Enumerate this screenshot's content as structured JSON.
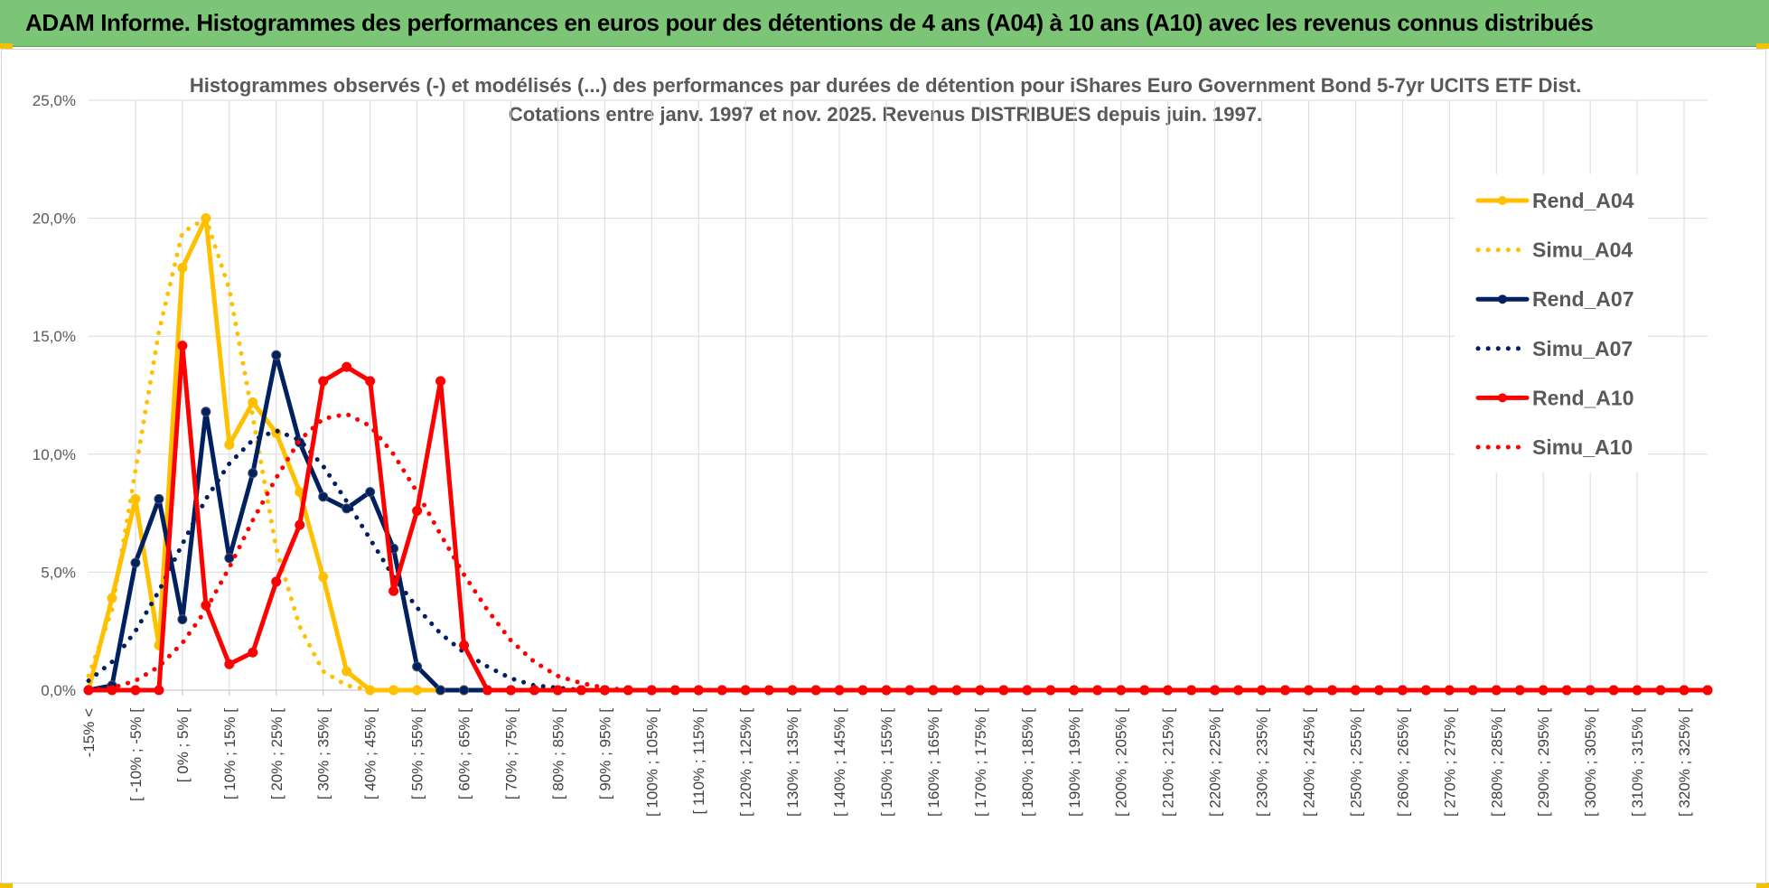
{
  "header": {
    "title": "ADAM Informe. Histogrammes des performances en euros pour des détentions de 4 ans (A04) à 10 ans (A10) avec les revenus connus distribués"
  },
  "chart_data": {
    "type": "line",
    "title_lines": [
      "Histogrammes observés (-) et modélisés (...) des performances par durées de détention pour iShares Euro Government Bond 5-7yr UCITS ETF Dist.",
      "Cotations entre janv. 1997 et nov. 2025. Revenus DISTRIBUES depuis juin. 1997."
    ],
    "xlabel": "",
    "ylabel": "",
    "ylim": [
      0,
      25
    ],
    "y_ticks": [
      "0,0%",
      "5,0%",
      "10,0%",
      "15,0%",
      "20,0%",
      "25,0%"
    ],
    "grid": true,
    "legend_position": "right",
    "x_labels": [
      "-15% <",
      "[ -10% ; -5% [",
      "[ 0% ; 5% [",
      "[ 10% ; 15% [",
      "[ 20% ; 25% [",
      "[ 30% ; 35% [",
      "[ 40% ; 45% [",
      "[ 50% ; 55% [",
      "[ 60% ; 65% [",
      "[ 70% ; 75% [",
      "[ 80% ; 85% [",
      "[ 90% ; 95% [",
      "[ 100% ; 105% [",
      "[ 110% ; 115% [",
      "[ 120% ; 125% [",
      "[ 130% ; 135% [",
      "[ 140% ; 145% [",
      "[ 150% ; 155% [",
      "[ 160% ; 165% [",
      "[ 170% ; 175% [",
      "[ 180% ; 185% [",
      "[ 190% ; 195% [",
      "[ 200% ; 205% [",
      "[ 210% ; 215% [",
      "[ 220% ; 225% [",
      "[ 230% ; 235% [",
      "[ 240% ; 245% [",
      "[ 250% ; 255% [",
      "[ 260% ; 265% [",
      "[ 270% ; 275% [",
      "[ 280% ; 285% [",
      "[ 290% ; 295% [",
      "[ 300% ; 305% [",
      "[ 310% ; 315% [",
      "[ 320% ; 325% ["
    ],
    "series": [
      {
        "name": "Rend_A04",
        "color": "#FFC000",
        "style": "solid",
        "markers": true,
        "values": [
          0.0,
          3.9,
          8.1,
          1.9,
          17.9,
          20.0,
          10.4,
          12.2,
          10.9,
          8.4,
          4.8,
          0.8,
          0.0,
          0.0,
          0.0
        ]
      },
      {
        "name": "Simu_A04",
        "color": "#FFC000",
        "style": "dotted",
        "markers": false,
        "values": [
          0.6,
          3.4,
          9.3,
          15.2,
          19.4,
          20.0,
          17.0,
          11.6,
          6.0,
          2.7,
          0.8,
          0.2,
          0.0,
          0.0,
          0.0
        ]
      },
      {
        "name": "Rend_A07",
        "color": "#002060",
        "style": "solid",
        "markers": true,
        "values": [
          0.0,
          0.2,
          5.4,
          8.1,
          3.0,
          11.8,
          5.6,
          9.2,
          14.2,
          10.5,
          8.2,
          7.7,
          8.4,
          6.0,
          1.0,
          0.0,
          0.0,
          0.0
        ]
      },
      {
        "name": "Simu_A07",
        "color": "#002060",
        "style": "dotted",
        "markers": false,
        "values": [
          0.4,
          1.2,
          2.5,
          4.2,
          6.2,
          8.1,
          9.6,
          10.6,
          11.0,
          10.6,
          9.5,
          8.0,
          6.4,
          4.8,
          3.5,
          2.4,
          1.6,
          1.0,
          0.5,
          0.2,
          0.1,
          0.0
        ]
      },
      {
        "name": "Rend_A10",
        "color": "#FF0000",
        "style": "solid",
        "markers": true,
        "values": [
          0.0,
          0.0,
          0.0,
          0.0,
          14.6,
          3.6,
          1.1,
          1.6,
          4.6,
          7.0,
          13.1,
          13.7,
          13.1,
          4.2,
          7.6,
          13.1,
          1.9,
          0.0
        ]
      },
      {
        "name": "Simu_A10",
        "color": "#FF0000",
        "style": "dotted",
        "markers": false,
        "values": [
          0.0,
          0.1,
          0.4,
          1.0,
          2.0,
          3.4,
          5.2,
          7.2,
          9.0,
          10.6,
          11.5,
          11.7,
          11.2,
          10.0,
          8.4,
          6.6,
          4.9,
          3.4,
          2.1,
          1.2,
          0.6,
          0.3,
          0.1,
          0.0
        ]
      }
    ]
  }
}
